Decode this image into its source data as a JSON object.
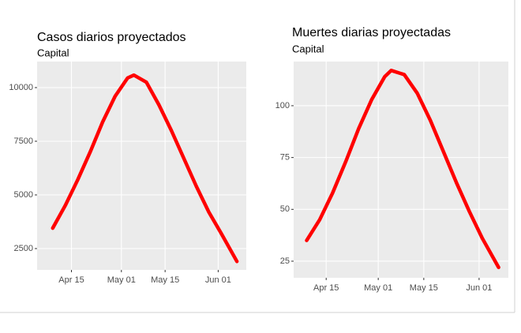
{
  "chart_data": [
    {
      "type": "line",
      "title": "Casos diarios proyectados",
      "subtitle": "Capital",
      "x": [
        "04-09",
        "04-13",
        "04-17",
        "04-21",
        "04-25",
        "04-29",
        "05-03",
        "05-05",
        "05-09",
        "05-13",
        "05-17",
        "05-21",
        "05-25",
        "05-29",
        "06-02",
        "06-07"
      ],
      "series": [
        {
          "color": "#ff0000",
          "values": [
            3450,
            4500,
            5700,
            7000,
            8400,
            9600,
            10450,
            10580,
            10250,
            9200,
            8000,
            6700,
            5400,
            4200,
            3200,
            1900
          ]
        }
      ],
      "xlim": [
        "04-04",
        "06-10"
      ],
      "xticks": [
        {
          "value": "04-15",
          "label": "Apr 15"
        },
        {
          "value": "05-01",
          "label": "May 01"
        },
        {
          "value": "05-15",
          "label": "May 15"
        },
        {
          "value": "06-01",
          "label": "Jun 01"
        }
      ],
      "ylim": [
        1507,
        11213
      ],
      "yticks": [
        2500,
        5000,
        7500,
        10000
      ],
      "grid": true
    },
    {
      "type": "line",
      "title": "Muertes diarias proyectadas",
      "subtitle": "Capital",
      "x": [
        "04-09",
        "04-13",
        "04-17",
        "04-21",
        "04-25",
        "04-29",
        "05-03",
        "05-05",
        "05-09",
        "05-13",
        "05-17",
        "05-21",
        "05-25",
        "05-29",
        "06-02",
        "06-07"
      ],
      "series": [
        {
          "color": "#ff0000",
          "values": [
            35,
            45,
            58,
            73,
            89,
            103,
            114,
            117,
            115,
            106,
            93,
            78,
            63,
            49,
            36,
            22
          ]
        }
      ],
      "xlim": [
        "04-05",
        "06-10"
      ],
      "xticks": [
        {
          "value": "04-15",
          "label": "Apr 15"
        },
        {
          "value": "05-01",
          "label": "May 01"
        },
        {
          "value": "05-15",
          "label": "May 15"
        },
        {
          "value": "06-01",
          "label": "Jun 01"
        }
      ],
      "ylim": [
        17,
        121.3
      ],
      "yticks": [
        25,
        50,
        75,
        100
      ],
      "grid": true
    }
  ]
}
